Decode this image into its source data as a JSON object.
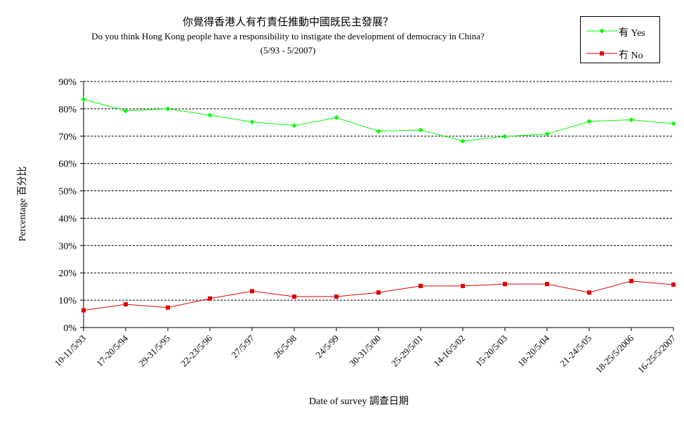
{
  "title": {
    "chinese": "你覺得香港人有冇責任推動中國既民主發展？",
    "english": "Do you think Hong Kong people have a responsibility to instigate the development of democracy in China?",
    "period": "(5/93 - 5/2007)"
  },
  "legend": {
    "yes": "有 Yes",
    "no": "冇 No"
  },
  "colors": {
    "yes": "#00ff00",
    "no": "#e00000",
    "grid": "#000000"
  },
  "chart_data": {
    "type": "line",
    "title": "你覺得香港人有冇責任推動中國既民主發展？",
    "subtitle": "Do you think Hong Kong people have a responsibility to instigate the development of democracy in China? (5/93 - 5/2007)",
    "xlabel": "Date of survey 調查日期",
    "ylabel": "Percentage 百分比",
    "ylim": [
      0,
      90
    ],
    "yticks": [
      "0%",
      "10%",
      "20%",
      "30%",
      "40%",
      "50%",
      "60%",
      "70%",
      "80%",
      "90%"
    ],
    "grid": "horizontal dotted",
    "legend_position": "top-right",
    "categories": [
      "10-11/5/93",
      "17-20/5/94",
      "29-31/5/95",
      "22-23/5/96",
      "27/5/97",
      "26/5/98",
      "24/5/99",
      "30-31/5/00",
      "25-29/5/01",
      "14-16/5/02",
      "15-20/5/03",
      "18-20/5/04",
      "21-24/5/05",
      "18-25/5/2006",
      "16-25/5/2007"
    ],
    "series": [
      {
        "name": "有 Yes",
        "color": "#00ff00",
        "marker": "diamond",
        "values": [
          83.5,
          79.3,
          80.0,
          77.7,
          75.2,
          73.9,
          76.8,
          71.8,
          72.3,
          68.2,
          69.9,
          70.8,
          75.4,
          76.0,
          74.6
        ]
      },
      {
        "name": "冇 No",
        "color": "#e00000",
        "marker": "square",
        "values": [
          6.3,
          8.5,
          7.3,
          10.6,
          13.3,
          11.3,
          11.3,
          12.8,
          15.2,
          15.2,
          15.9,
          15.9,
          12.8,
          17.0,
          15.7
        ]
      }
    ]
  },
  "axes": {
    "x_title": "Date of survey  調查日期",
    "y_title": "Percentage  百分比"
  }
}
